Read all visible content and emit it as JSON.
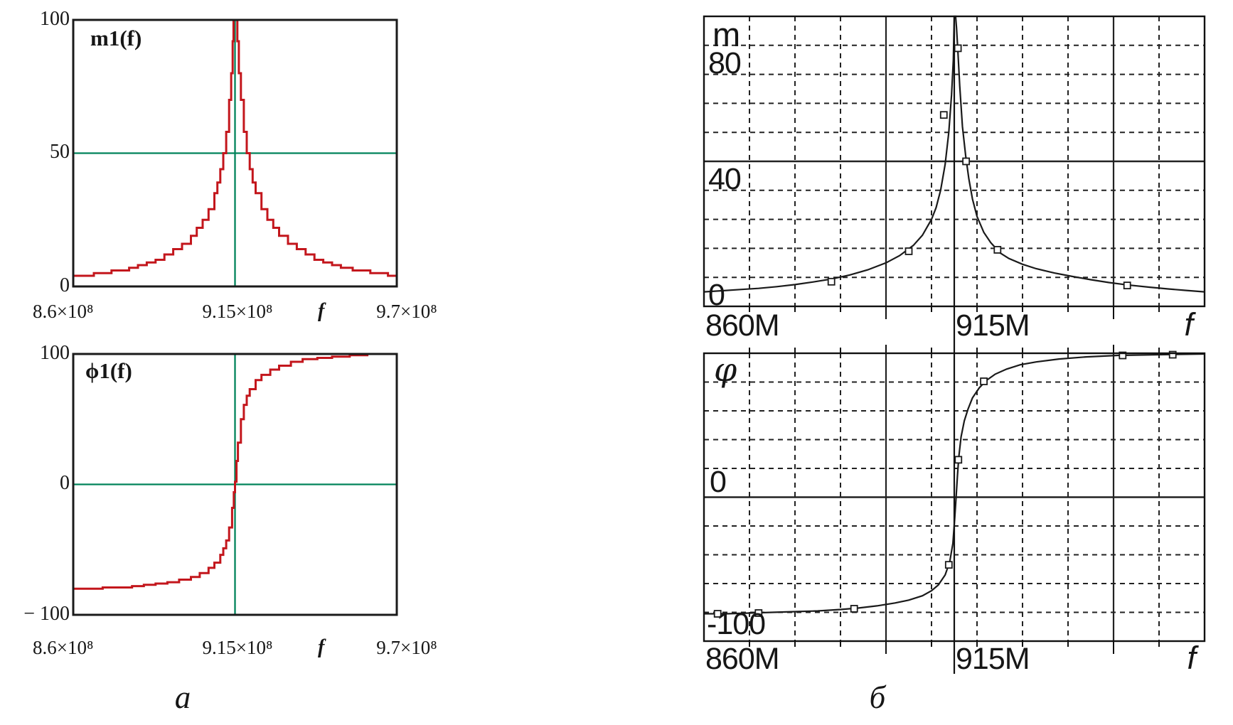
{
  "figure": {
    "caption_left": "а",
    "caption_right": "б"
  },
  "chart_data": [
    {
      "id": "mathcad-magnitude",
      "type": "line",
      "trace_label": "m1(f)",
      "xlabel": "f",
      "x_tick_labels": [
        "8.6×10⁸",
        "9.15×10⁸",
        "9.7×10⁸"
      ],
      "y_tick_labels": [
        "100",
        "50",
        "0"
      ],
      "xlim": [
        860,
        970
      ],
      "ylim": [
        0,
        100
      ],
      "crosshair": {
        "x": 915,
        "y": 50
      },
      "colors": {
        "curve": "#c3161c",
        "crosshair": "#00835a",
        "frame": "#1a1a1a"
      },
      "points": [
        [
          860,
          4
        ],
        [
          864,
          4
        ],
        [
          867,
          5
        ],
        [
          870,
          5
        ],
        [
          873,
          6
        ],
        [
          876,
          6
        ],
        [
          879,
          7
        ],
        [
          882,
          8
        ],
        [
          885,
          9
        ],
        [
          888,
          10
        ],
        [
          891,
          12
        ],
        [
          894,
          14
        ],
        [
          897,
          16
        ],
        [
          900,
          19
        ],
        [
          902,
          22
        ],
        [
          904,
          25
        ],
        [
          906,
          29
        ],
        [
          908,
          35
        ],
        [
          909,
          39
        ],
        [
          910,
          44
        ],
        [
          911,
          50
        ],
        [
          912,
          58
        ],
        [
          913,
          70
        ],
        [
          913.7,
          80
        ],
        [
          914.2,
          92
        ],
        [
          914.5,
          100
        ],
        [
          915.5,
          100
        ],
        [
          915.8,
          92
        ],
        [
          916.3,
          80
        ],
        [
          917,
          70
        ],
        [
          918,
          58
        ],
        [
          919,
          50
        ],
        [
          920,
          44
        ],
        [
          921,
          39
        ],
        [
          922,
          35
        ],
        [
          924,
          29
        ],
        [
          926,
          25
        ],
        [
          928,
          22
        ],
        [
          930,
          19
        ],
        [
          933,
          16
        ],
        [
          936,
          14
        ],
        [
          939,
          12
        ],
        [
          942,
          10
        ],
        [
          945,
          9
        ],
        [
          948,
          8
        ],
        [
          951,
          7
        ],
        [
          955,
          6
        ],
        [
          958,
          6
        ],
        [
          961,
          5
        ],
        [
          964,
          5
        ],
        [
          967,
          4
        ],
        [
          970,
          4
        ]
      ]
    },
    {
      "id": "mathcad-phase",
      "type": "line",
      "trace_label": "ϕ1(f)",
      "xlabel": "f",
      "x_tick_labels": [
        "8.6×10⁸",
        "9.15×10⁸",
        "9.7×10⁸"
      ],
      "y_tick_labels": [
        "100",
        "0",
        "− 100"
      ],
      "xlim": [
        860,
        970
      ],
      "ylim": [
        -100,
        100
      ],
      "crosshair": {
        "x": 915,
        "y": 0
      },
      "colors": {
        "curve": "#c3161c",
        "crosshair": "#00835a",
        "frame": "#1a1a1a"
      },
      "points": [
        [
          860,
          -80
        ],
        [
          866,
          -80
        ],
        [
          870,
          -79
        ],
        [
          875,
          -79
        ],
        [
          880,
          -78
        ],
        [
          884,
          -77
        ],
        [
          888,
          -76
        ],
        [
          892,
          -75
        ],
        [
          896,
          -73
        ],
        [
          900,
          -71
        ],
        [
          903,
          -68
        ],
        [
          906,
          -64
        ],
        [
          908,
          -60
        ],
        [
          910,
          -54
        ],
        [
          911,
          -49
        ],
        [
          912,
          -43
        ],
        [
          913,
          -33
        ],
        [
          914,
          -18
        ],
        [
          914.6,
          -6
        ],
        [
          915,
          2
        ],
        [
          915.5,
          18
        ],
        [
          916,
          32
        ],
        [
          917,
          50
        ],
        [
          918,
          61
        ],
        [
          919,
          68
        ],
        [
          920,
          73
        ],
        [
          922,
          80
        ],
        [
          924,
          84
        ],
        [
          927,
          88
        ],
        [
          930,
          91
        ],
        [
          934,
          94
        ],
        [
          938,
          96
        ],
        [
          943,
          97
        ],
        [
          948,
          98
        ],
        [
          954,
          99
        ],
        [
          960,
          100
        ],
        [
          970,
          100
        ]
      ]
    },
    {
      "id": "sim-magnitude",
      "type": "line",
      "trace_label": "m",
      "xlabel": "f",
      "x_tick_labels": [
        "860M",
        "915M"
      ],
      "y_tick_labels": [
        "80",
        "40",
        "0"
      ],
      "xlim": [
        860,
        970
      ],
      "ylim": [
        -10,
        90
      ],
      "grid": {
        "x_minor_step": 10,
        "x_major": [
          900,
          950
        ],
        "y_minor_step": 10,
        "y_major": [
          40
        ]
      },
      "cursor_x": 915,
      "colors": {
        "curve": "#1a1a1a",
        "grid": "#222222",
        "frame": "#111111"
      },
      "points": [
        [
          860,
          -5
        ],
        [
          864,
          -4.6
        ],
        [
          868,
          -4.2
        ],
        [
          872,
          -3.8
        ],
        [
          876,
          -3.2
        ],
        [
          880,
          -2.5
        ],
        [
          884,
          -1.6
        ],
        [
          888,
          -0.6
        ],
        [
          892,
          0.8
        ],
        [
          896,
          2.6
        ],
        [
          900,
          5
        ],
        [
          903,
          7.5
        ],
        [
          906,
          11
        ],
        [
          908,
          14.5
        ],
        [
          910,
          20
        ],
        [
          911,
          24
        ],
        [
          912,
          30
        ],
        [
          913,
          39
        ],
        [
          913.8,
          50
        ],
        [
          914.4,
          63
        ],
        [
          914.8,
          75
        ],
        [
          915,
          90
        ],
        [
          915.3,
          90
        ],
        [
          915.5,
          86
        ],
        [
          915.8,
          78
        ],
        [
          916.2,
          66
        ],
        [
          916.8,
          52
        ],
        [
          917.5,
          42
        ],
        [
          918.2,
          34
        ],
        [
          919,
          27
        ],
        [
          920,
          21
        ],
        [
          921.5,
          15.5
        ],
        [
          923,
          12
        ],
        [
          925,
          8.5
        ],
        [
          927,
          6.5
        ],
        [
          930,
          4.5
        ],
        [
          933,
          3
        ],
        [
          937,
          1.5
        ],
        [
          941,
          0.3
        ],
        [
          945,
          -0.8
        ],
        [
          949,
          -1.8
        ],
        [
          953,
          -2.6
        ],
        [
          958,
          -3.4
        ],
        [
          962,
          -4
        ],
        [
          966,
          -4.5
        ],
        [
          970,
          -5
        ]
      ],
      "markers": [
        [
          888,
          -1.5
        ],
        [
          905,
          9
        ],
        [
          912.7,
          56
        ],
        [
          915.8,
          79
        ],
        [
          917.6,
          40
        ],
        [
          924.5,
          9.5
        ],
        [
          953,
          -2.8
        ]
      ]
    },
    {
      "id": "sim-phase",
      "type": "line",
      "trace_label": "φ",
      "xlabel": "f",
      "x_tick_labels": [
        "860M",
        "915M"
      ],
      "y_tick_labels": [
        "0",
        "-100"
      ],
      "xlim": [
        860,
        970
      ],
      "ylim": [
        -100,
        100
      ],
      "grid": {
        "x_minor_step": 10,
        "x_major": [
          900,
          950
        ],
        "y_minor_step": 20,
        "y_major": [
          0
        ]
      },
      "cursor_x": 915,
      "colors": {
        "curve": "#1a1a1a",
        "grid": "#222222",
        "frame": "#111111"
      },
      "points": [
        [
          860,
          -81
        ],
        [
          865,
          -81
        ],
        [
          870,
          -80.5
        ],
        [
          875,
          -80
        ],
        [
          880,
          -79.5
        ],
        [
          885,
          -79
        ],
        [
          890,
          -78
        ],
        [
          894,
          -77
        ],
        [
          898,
          -75.5
        ],
        [
          902,
          -73.5
        ],
        [
          905,
          -71.5
        ],
        [
          908,
          -68.5
        ],
        [
          910,
          -65
        ],
        [
          911.5,
          -61
        ],
        [
          913,
          -54
        ],
        [
          914,
          -45
        ],
        [
          914.7,
          -32
        ],
        [
          915.1,
          -15
        ],
        [
          915.4,
          0
        ],
        [
          915.7,
          15
        ],
        [
          916,
          28
        ],
        [
          916.5,
          42
        ],
        [
          917.2,
          53
        ],
        [
          918,
          61
        ],
        [
          919,
          69
        ],
        [
          920.5,
          76
        ],
        [
          922,
          81
        ],
        [
          924,
          85.5
        ],
        [
          926.5,
          89
        ],
        [
          929.5,
          92
        ],
        [
          933,
          94
        ],
        [
          938,
          96
        ],
        [
          944,
          97.5
        ],
        [
          951,
          98.5
        ],
        [
          960,
          99
        ],
        [
          970,
          99.5
        ]
      ],
      "markers": [
        [
          863,
          -81
        ],
        [
          872,
          -80.5
        ],
        [
          893,
          -77.5
        ],
        [
          913.8,
          -47
        ],
        [
          915.9,
          26
        ],
        [
          921.5,
          80.5
        ],
        [
          952,
          98.5
        ],
        [
          963,
          99
        ]
      ]
    }
  ]
}
